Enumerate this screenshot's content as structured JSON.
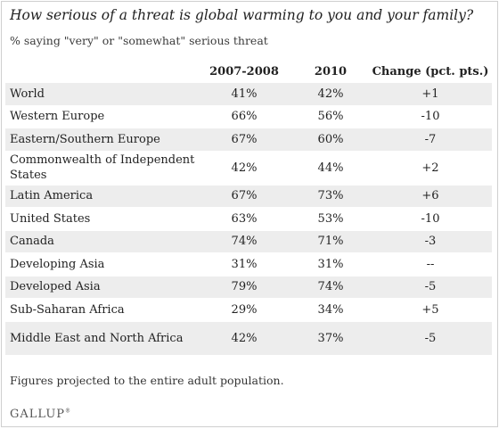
{
  "title": "How serious of a threat is global warming to you and your family?",
  "subtitle": "% saying \"very\" or \"somewhat\" serious threat",
  "chart_data": {
    "type": "table",
    "columns": [
      "",
      "2007-2008",
      "2010",
      "Change (pct. pts.)"
    ],
    "rows": [
      {
        "region": "World",
        "y2007_2008": "41%",
        "y2010": "42%",
        "change": "+1"
      },
      {
        "region": "Western Europe",
        "y2007_2008": "66%",
        "y2010": "56%",
        "change": "-10"
      },
      {
        "region": "Eastern/Southern Europe",
        "y2007_2008": "67%",
        "y2010": "60%",
        "change": "-7"
      },
      {
        "region": "Commonwealth of Independent States",
        "y2007_2008": "42%",
        "y2010": "44%",
        "change": "+2"
      },
      {
        "region": "Latin America",
        "y2007_2008": "67%",
        "y2010": "73%",
        "change": "+6"
      },
      {
        "region": "United States",
        "y2007_2008": "63%",
        "y2010": "53%",
        "change": "-10"
      },
      {
        "region": "Canada",
        "y2007_2008": "74%",
        "y2010": "71%",
        "change": "-3"
      },
      {
        "region": "Developing Asia",
        "y2007_2008": "31%",
        "y2010": "31%",
        "change": "--"
      },
      {
        "region": "Developed Asia",
        "y2007_2008": "79%",
        "y2010": "74%",
        "change": "-5"
      },
      {
        "region": "Sub-Saharan Africa",
        "y2007_2008": "29%",
        "y2010": "34%",
        "change": "+5"
      },
      {
        "region": "Middle East and North Africa",
        "y2007_2008": "42%",
        "y2010": "37%",
        "change": "-5"
      }
    ]
  },
  "footnote": "Figures projected to the entire adult population.",
  "logo": {
    "text": "GALLUP",
    "mark": "®"
  }
}
